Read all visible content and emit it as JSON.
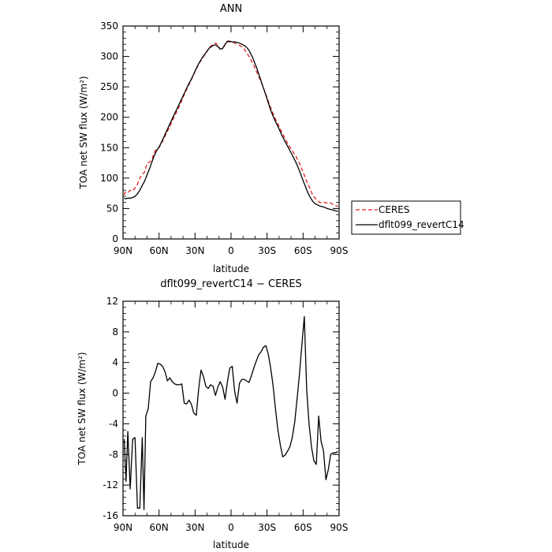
{
  "chart_data": [
    {
      "type": "line",
      "title": "ANN",
      "xlabel": "latitude",
      "ylabel": "TOA net SW flux (W/m²)",
      "ylim": [
        0,
        350
      ],
      "yticks": [
        0,
        50,
        100,
        150,
        200,
        250,
        300,
        350
      ],
      "xlim": [
        90,
        -90
      ],
      "xticks": [
        90,
        60,
        30,
        0,
        -30,
        -60,
        -90
      ],
      "xtick_labels": [
        "90N",
        "60N",
        "30N",
        "0",
        "30S",
        "60S",
        "90S"
      ],
      "legend_position": "right",
      "series": [
        {
          "name": "CERES",
          "color": "#e02020",
          "dash": true,
          "x": [
            89,
            88,
            86,
            84,
            82,
            80,
            78,
            76,
            74,
            72,
            70,
            68,
            66,
            64,
            62,
            60,
            57,
            54,
            51,
            48,
            45,
            42,
            39,
            36,
            33,
            30,
            27,
            24,
            21,
            18,
            15,
            13,
            11,
            9,
            7,
            5,
            3,
            1,
            -1,
            -3,
            -5,
            -7,
            -9,
            -11,
            -13,
            -15,
            -18,
            -21,
            -24,
            -27,
            -30,
            -33,
            -36,
            -39,
            -42,
            -45,
            -48,
            -51,
            -54,
            -57,
            -60,
            -62,
            -64,
            -66,
            -68,
            -70,
            -72,
            -74,
            -76,
            -78,
            -80,
            -82,
            -84,
            -86,
            -88,
            -89
          ],
          "y": [
            72,
            77,
            76,
            80,
            79,
            84,
            90,
            100,
            106,
            110,
            124,
            126,
            130,
            142,
            148,
            150,
            161,
            173,
            185,
            198,
            210,
            223,
            237,
            250,
            262,
            275,
            287,
            297,
            305,
            315,
            320,
            322,
            319,
            312,
            313,
            319,
            324,
            324,
            324,
            322,
            320,
            318,
            316,
            312,
            306,
            300,
            289,
            276,
            263,
            248,
            232,
            216,
            201,
            189,
            177,
            165,
            154,
            145,
            136,
            124,
            110,
            100,
            90,
            82,
            72,
            67,
            63,
            60,
            59,
            60,
            59,
            60,
            58,
            56,
            54,
            53
          ]
        },
        {
          "name": "dflt099_revertC14",
          "color": "#000000",
          "dash": false,
          "x": [
            89,
            88,
            86,
            84,
            82,
            80,
            78,
            76,
            74,
            72,
            70,
            68,
            66,
            64,
            62,
            60,
            57,
            54,
            51,
            48,
            45,
            42,
            39,
            36,
            33,
            30,
            27,
            24,
            21,
            18,
            15,
            13,
            11,
            9,
            7,
            5,
            3,
            1,
            -1,
            -3,
            -5,
            -7,
            -9,
            -11,
            -13,
            -15,
            -18,
            -21,
            -24,
            -27,
            -30,
            -33,
            -36,
            -39,
            -42,
            -45,
            -48,
            -51,
            -54,
            -57,
            -60,
            -62,
            -64,
            -66,
            -68,
            -70,
            -72,
            -74,
            -76,
            -78,
            -80,
            -82,
            -84,
            -86,
            -88,
            -89
          ],
          "y": [
            67,
            66,
            67,
            67,
            68,
            70,
            74,
            80,
            88,
            95,
            105,
            115,
            126,
            137,
            145,
            151,
            163,
            176,
            189,
            202,
            214,
            227,
            239,
            252,
            263,
            276,
            288,
            298,
            306,
            314,
            318,
            319,
            316,
            312,
            313,
            320,
            325,
            325,
            324,
            324,
            323,
            322,
            320,
            318,
            315,
            310,
            298,
            283,
            266,
            248,
            230,
            212,
            197,
            185,
            172,
            160,
            149,
            138,
            126,
            112,
            96,
            86,
            76,
            68,
            62,
            58,
            56,
            54,
            53,
            52,
            50,
            49,
            48,
            47,
            46,
            45
          ]
        }
      ]
    },
    {
      "type": "line",
      "title": "dflt099_revertC14 − CERES",
      "xlabel": "latitude",
      "ylabel": "TOA net SW flux (W/m²)",
      "ylim": [
        -16,
        12
      ],
      "yticks": [
        -16,
        -12,
        -8,
        -4,
        0,
        4,
        8,
        12
      ],
      "xlim": [
        90,
        -90
      ],
      "xticks": [
        90,
        60,
        30,
        0,
        -30,
        -60,
        -90
      ],
      "xtick_labels": [
        "90N",
        "60N",
        "30N",
        "0",
        "30S",
        "60S",
        "90S"
      ],
      "series": [
        {
          "name": "",
          "color": "#000000",
          "dash": false,
          "x": [
            89,
            87.5,
            86,
            84,
            82,
            80,
            78,
            76,
            74,
            72.5,
            71,
            69,
            67,
            65,
            63,
            61,
            59,
            57,
            55,
            53,
            51,
            49,
            47,
            45,
            43,
            41,
            39,
            37,
            35,
            33,
            31,
            29,
            27,
            25,
            23,
            21,
            19,
            17,
            15,
            13,
            11,
            9,
            7,
            5,
            3,
            1,
            -1,
            -3,
            -5,
            -7,
            -9,
            -11,
            -13,
            -15,
            -17,
            -19,
            -21,
            -23,
            -25,
            -27,
            -29,
            -31,
            -33,
            -35,
            -37,
            -39,
            -41,
            -43,
            -45,
            -47,
            -49,
            -51,
            -53,
            -55,
            -57,
            -59,
            -61,
            -63,
            -65,
            -67,
            -69,
            -71,
            -73,
            -75,
            -77,
            -79,
            -81,
            -83,
            -85,
            -87,
            -89
          ],
          "y": [
            -6,
            -11.5,
            -5,
            -12.5,
            -6,
            -5.8,
            -15,
            -15,
            -5.8,
            -15.2,
            -3,
            -2,
            1.5,
            2,
            2.8,
            3.9,
            3.8,
            3.5,
            2.8,
            1.6,
            2.0,
            1.5,
            1.2,
            1.1,
            1.1,
            1.2,
            -1.3,
            -1.4,
            -0.9,
            -1.5,
            -2.6,
            -2.9,
            0.5,
            3.0,
            2.2,
            0.9,
            0.6,
            1.1,
            0.9,
            -0.3,
            0.8,
            1.5,
            0.8,
            -0.8,
            1.5,
            3.3,
            3.5,
            0.2,
            -1.3,
            1.3,
            1.8,
            1.8,
            1.6,
            1.4,
            2.3,
            3.3,
            4.2,
            5.0,
            5.4,
            6.0,
            6.2,
            5.1,
            3.3,
            1.0,
            -2.0,
            -4.8,
            -6.7,
            -8.3,
            -8.1,
            -7.6,
            -7.0,
            -5.8,
            -3.8,
            -0.8,
            2.5,
            6.3,
            10.0,
            0.5,
            -4.0,
            -7.0,
            -8.8,
            -9.3,
            -3.0,
            -6.3,
            -7.5,
            -11.3,
            -10.0,
            -8.0,
            -7.8,
            -7.8,
            -7.6
          ]
        }
      ]
    }
  ]
}
